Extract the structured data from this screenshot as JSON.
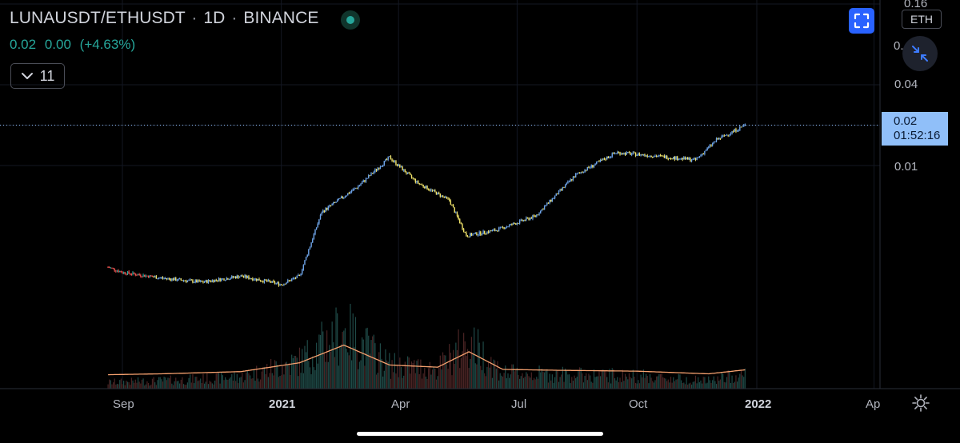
{
  "header": {
    "symbol": "LUNAUSDT/ETHUSDT",
    "separator": "·",
    "interval": "1D",
    "exchange": "BINANCE",
    "status_color": "#26a69a"
  },
  "ohlc": {
    "last": "0.02",
    "change": "0.00",
    "change_pct": "(+4.63%)",
    "color": "#26a69a"
  },
  "indicators": {
    "toggle_icon": "chevron-down-icon",
    "count": "11"
  },
  "toolbar": {
    "fullscreen_icon": "fullscreen-icon",
    "currency": "ETH",
    "collapse_icon": "collapse-arrows-icon",
    "settings_icon": "gear-icon",
    "accent": "#2962ff"
  },
  "price_scale": {
    "labels": [
      "0.16",
      "0.",
      "0.04",
      "0.01"
    ],
    "current_price": "0.02",
    "countdown": "01:52:16",
    "label_color": "#90bff9"
  },
  "time_scale": {
    "labels": [
      "Sep",
      "2021",
      "Apr",
      "Jul",
      "Oct",
      "2022",
      "Ap"
    ],
    "bold_labels": [
      "2021",
      "2022"
    ]
  },
  "chart_data": {
    "type": "candlestick",
    "symbol": "LUNAUSDT/ETHUSDT",
    "interval": "1D",
    "y_scale": "log",
    "y_ticks": [
      0.01,
      0.02,
      0.04,
      0.16
    ],
    "last_price": 0.02,
    "series": [
      {
        "name": "price",
        "dates": [
          "2020-08-21",
          "2020-09-01",
          "2020-10-01",
          "2020-11-01",
          "2020-12-01",
          "2021-01-01",
          "2021-01-15",
          "2021-02-01",
          "2021-03-01",
          "2021-03-25",
          "2021-04-15",
          "2021-05-10",
          "2021-05-23",
          "2021-06-15",
          "2021-07-15",
          "2021-08-15",
          "2021-09-15",
          "2021-10-15",
          "2021-11-15",
          "2021-12-01",
          "2021-12-23"
        ],
        "values": [
          0.00175,
          0.0016,
          0.00145,
          0.00135,
          0.0015,
          0.0013,
          0.0015,
          0.0045,
          0.007,
          0.0115,
          0.0075,
          0.0055,
          0.003,
          0.0033,
          0.0042,
          0.0085,
          0.0125,
          0.0118,
          0.011,
          0.0155,
          0.02
        ]
      },
      {
        "name": "volume_ma",
        "dates": [
          "2020-08-21",
          "2020-10-01",
          "2020-12-01",
          "2021-01-15",
          "2021-02-18",
          "2021-03-25",
          "2021-05-01",
          "2021-05-25",
          "2021-06-20",
          "2021-08-01",
          "2021-10-01",
          "2021-11-25",
          "2021-12-23"
        ],
        "values": [
          0.8,
          1.0,
          1.5,
          3.5,
          7.5,
          3.0,
          2.5,
          6.0,
          2.0,
          1.8,
          1.6,
          1.0,
          1.9
        ]
      }
    ],
    "colors": {
      "up": "#6ea4e8",
      "down": "#f0e36a",
      "early_up": "#26a69a",
      "early_down": "#ef5350",
      "volume_ma": "#f5a06e"
    },
    "x_labels": [
      "Sep",
      "2021",
      "Apr",
      "Jul",
      "Oct",
      "2022",
      "Ap"
    ],
    "grid": true
  }
}
